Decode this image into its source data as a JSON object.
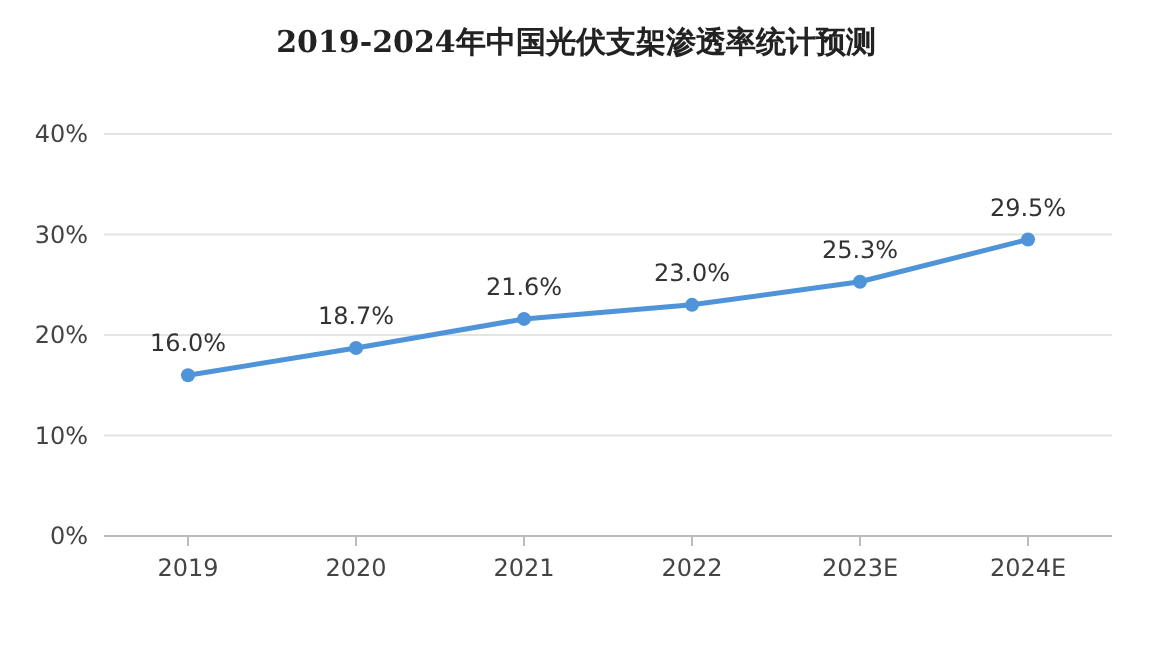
{
  "chart_data": {
    "type": "line",
    "title": "2019-2024年中国光伏支架渗透率统计预测",
    "categories": [
      "2019",
      "2020",
      "2021",
      "2022",
      "2023E",
      "2024E"
    ],
    "series": [
      {
        "color": "#4f94d9",
        "values": [
          16.0,
          18.7,
          21.6,
          23.0,
          25.3,
          29.5
        ],
        "value_labels": [
          "16.0%",
          "18.7%",
          "21.6%",
          "23.0%",
          "25.3%",
          "29.5%"
        ]
      }
    ],
    "ylim": [
      0,
      40
    ],
    "yticks": [
      {
        "value": 0,
        "label": "0%"
      },
      {
        "value": 10,
        "label": "10%"
      },
      {
        "value": 20,
        "label": "20%"
      },
      {
        "value": 30,
        "label": "30%"
      },
      {
        "value": 40,
        "label": "40%"
      }
    ],
    "grid": "y",
    "marker": "circle",
    "line_style": "solid"
  }
}
